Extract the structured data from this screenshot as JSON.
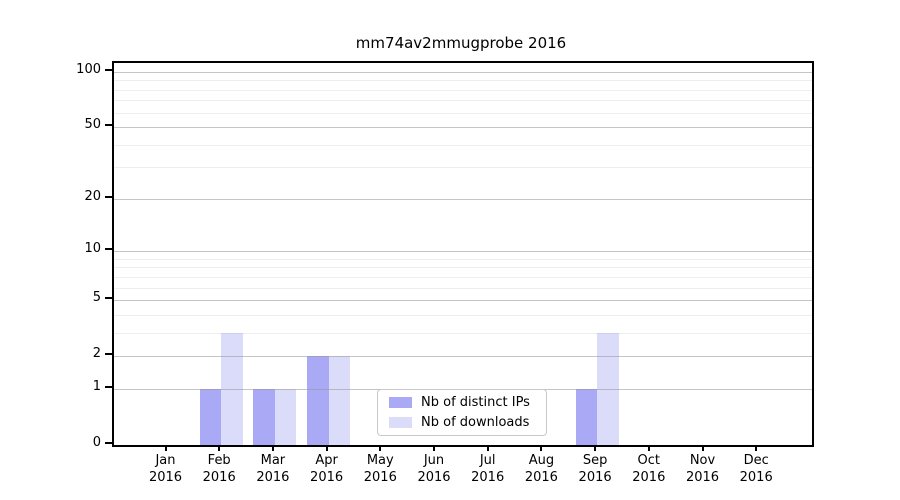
{
  "chart_data": {
    "type": "bar",
    "title": "mm74av2mmugprobe 2016",
    "categories": [
      "Jan 2016",
      "Feb 2016",
      "Mar 2016",
      "Apr 2016",
      "May 2016",
      "Jun 2016",
      "Jul 2016",
      "Aug 2016",
      "Sep 2016",
      "Oct 2016",
      "Nov 2016",
      "Dec 2016"
    ],
    "series": [
      {
        "name": "Nb of distinct IPs",
        "color": "#a9a9f6",
        "values": [
          0,
          1,
          1,
          2,
          0,
          0,
          0,
          0,
          1,
          0,
          0,
          0
        ]
      },
      {
        "name": "Nb of downloads",
        "color": "#dbdbfa",
        "values": [
          0,
          3,
          1,
          2,
          0,
          0,
          0,
          0,
          3,
          0,
          0,
          0
        ]
      }
    ],
    "axes": {
      "xlabel": "",
      "ylabel": "",
      "yscale": "log(1+x)",
      "yticks": [
        0,
        1,
        2,
        5,
        10,
        20,
        50,
        100
      ],
      "yticks_minor": [
        3,
        4,
        6,
        7,
        8,
        9,
        30,
        40,
        60,
        70,
        80,
        90
      ],
      "ylim": [
        0,
        112
      ],
      "grid": true,
      "legend_position": "lower center"
    }
  }
}
